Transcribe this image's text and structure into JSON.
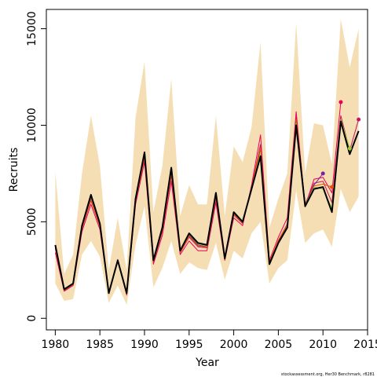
{
  "chart_data": {
    "type": "line",
    "xlabel": "Year",
    "ylabel": "Recruits",
    "xlim": [
      1979,
      2015
    ],
    "ylim": [
      -600,
      16000
    ],
    "x_ticks": [
      1980,
      1985,
      1990,
      1995,
      2000,
      2005,
      2010,
      2015
    ],
    "y_ticks": [
      0,
      5000,
      10000,
      15000
    ],
    "grid": false,
    "legend": "none",
    "footnote": "stockassessment.org, Her30 Benchmark, r8281",
    "band": {
      "color": "#f5deb3",
      "x": [
        1980,
        1981,
        1982,
        1983,
        1984,
        1985,
        1986,
        1987,
        1988,
        1989,
        1990,
        1991,
        1992,
        1993,
        1994,
        1995,
        1996,
        1997,
        1998,
        1999,
        2000,
        2001,
        2002,
        2003,
        2004,
        2005,
        2006,
        2007,
        2008,
        2009,
        2010,
        2011,
        2012,
        2013,
        2014
      ],
      "upper": [
        7600,
        2300,
        3300,
        7500,
        10500,
        7900,
        2500,
        5200,
        2500,
        10400,
        13300,
        5500,
        7900,
        12400,
        5300,
        6900,
        5900,
        5900,
        10500,
        5300,
        8900,
        8100,
        9900,
        14300,
        4700,
        6200,
        7500,
        15300,
        7500,
        10100,
        10000,
        8000,
        15500,
        13000,
        15000
      ],
      "lower": [
        1800,
        900,
        1000,
        3300,
        4000,
        3200,
        800,
        1700,
        700,
        3800,
        5800,
        1600,
        2600,
        4000,
        2300,
        2900,
        2600,
        2500,
        3900,
        2000,
        3500,
        3100,
        4400,
        5000,
        1800,
        2600,
        3000,
        6600,
        3900,
        4400,
        4600,
        3700,
        6700,
        5500,
        6300
      ]
    },
    "series": [
      {
        "color": "#000000",
        "width": 2,
        "x": [
          1980,
          1981,
          1982,
          1983,
          1984,
          1985,
          1986,
          1987,
          1988,
          1989,
          1990,
          1991,
          1992,
          1993,
          1994,
          1995,
          1996,
          1997,
          1998,
          1999,
          2000,
          2001,
          2002,
          2003,
          2004,
          2005,
          2006,
          2007,
          2008,
          2009,
          2010,
          2011,
          2012,
          2013,
          2014
        ],
        "values": [
          3800,
          1500,
          1800,
          4800,
          6400,
          4900,
          1300,
          3000,
          1300,
          6200,
          8600,
          3000,
          4700,
          7800,
          3500,
          4400,
          3900,
          3800,
          6500,
          3100,
          5500,
          5000,
          6700,
          8400,
          2800,
          3900,
          4700,
          10000,
          5800,
          6700,
          6800,
          5500,
          10200,
          8500,
          9700
        ]
      },
      {
        "color": "#e8005c",
        "width": 1,
        "x": [
          1980,
          1981,
          1982,
          1983,
          1984,
          1985,
          1986,
          1987,
          1988,
          1989,
          1990,
          1991,
          1992,
          1993,
          1994,
          1995,
          1996,
          1997,
          1998,
          1999,
          2000,
          2001,
          2002,
          2003,
          2004,
          2005,
          2006,
          2007,
          2008,
          2009,
          2010,
          2011,
          2012
        ],
        "values": [
          3400,
          1400,
          1700,
          4500,
          5900,
          4600,
          1300,
          3000,
          1200,
          5900,
          8100,
          2800,
          4300,
          7100,
          3300,
          4000,
          3500,
          3500,
          6000,
          3000,
          5200,
          4800,
          6900,
          9500,
          3000,
          4200,
          5200,
          10700,
          5800,
          7200,
          7300,
          6500,
          11200
        ],
        "end_marker": true
      },
      {
        "color": "#c2185b",
        "width": 1,
        "x": [
          1980,
          1981,
          1982,
          1983,
          1984,
          1985,
          1986,
          1987,
          1988,
          1989,
          1990,
          1991,
          1992,
          1993,
          1994,
          1995,
          1996,
          1997,
          1998,
          1999,
          2000,
          2001,
          2002,
          2003,
          2004,
          2005,
          2006,
          2007,
          2008,
          2009,
          2010,
          2011,
          2012,
          2013,
          2014
        ],
        "values": [
          3600,
          1450,
          1750,
          4650,
          6100,
          4750,
          1300,
          3050,
          1250,
          6050,
          8300,
          2900,
          4500,
          7400,
          3400,
          4200,
          3700,
          3650,
          6200,
          3050,
          5350,
          4900,
          6800,
          9000,
          2900,
          4000,
          4900,
          10400,
          5900,
          7000,
          7100,
          6000,
          10500,
          8700,
          10300
        ],
        "end_marker": true
      },
      {
        "color": "#7b1fa2",
        "width": 1,
        "x": [
          1980,
          1981,
          1982,
          1983,
          1984,
          1985,
          1986,
          1987,
          1988,
          1989,
          1990,
          1991,
          1992,
          1993,
          1994,
          1995,
          1996,
          1997,
          1998,
          1999,
          2000,
          2001,
          2002,
          2003,
          2004,
          2005,
          2006,
          2007,
          2008,
          2009,
          2010
        ],
        "values": [
          3700,
          1480,
          1780,
          4700,
          6200,
          4800,
          1300,
          3000,
          1280,
          6100,
          8400,
          2950,
          4600,
          7600,
          3450,
          4300,
          3800,
          3700,
          6350,
          3080,
          5400,
          4950,
          6750,
          8700,
          2850,
          3950,
          4800,
          10200,
          5900,
          6900,
          7500
        ],
        "end_marker": true
      },
      {
        "color": "#e65100",
        "width": 1,
        "x": [
          1980,
          1981,
          1982,
          1983,
          1984,
          1985,
          1986,
          1987,
          1988,
          1989,
          1990,
          1991,
          1992,
          1993,
          1994,
          1995,
          1996,
          1997,
          1998,
          1999,
          2000,
          2001,
          2002,
          2003,
          2004,
          2005,
          2006,
          2007,
          2008,
          2009,
          2010,
          2011
        ],
        "values": [
          3650,
          1460,
          1760,
          4680,
          6150,
          4780,
          1300,
          3020,
          1260,
          6080,
          8350,
          2920,
          4550,
          7500,
          3420,
          4250,
          3750,
          3680,
          6300,
          3060,
          5380,
          4930,
          6780,
          8800,
          2880,
          4050,
          4850,
          10300,
          5850,
          6850,
          6950,
          6800
        ],
        "end_marker": true
      },
      {
        "color": "#9acd32",
        "width": 1,
        "x": [
          1980,
          1981,
          1982,
          1983,
          1984,
          1985,
          1986,
          1987,
          1988,
          1989,
          1990,
          1991,
          1992,
          1993,
          1994,
          1995,
          1996,
          1997,
          1998,
          1999,
          2000,
          2001,
          2002,
          2003,
          2004,
          2005,
          2006,
          2007,
          2008,
          2009,
          2010,
          2011,
          2012,
          2013
        ],
        "values": [
          3750,
          1490,
          1790,
          4750,
          6300,
          4850,
          1300,
          3000,
          1290,
          6150,
          8500,
          2980,
          4650,
          7700,
          3480,
          4350,
          3850,
          3750,
          6400,
          3090,
          5450,
          4980,
          6720,
          8600,
          2820,
          3920,
          4750,
          10100,
          5850,
          6800,
          6700,
          5700,
          10300,
          8800
        ],
        "end_marker": true
      }
    ]
  }
}
